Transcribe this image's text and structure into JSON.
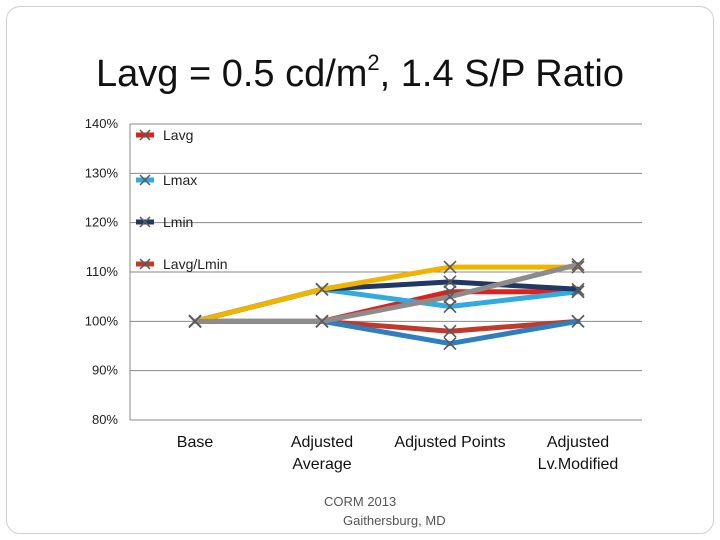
{
  "title": {
    "before": "Lavg = 0.5 cd/m",
    "sup": "2",
    "after": ", 1.4 S/P Ratio"
  },
  "footer": {
    "line1": "CORM 2013",
    "line2": "Gaithersburg, MD"
  },
  "chart_data": {
    "type": "line",
    "categories": [
      "Base",
      "Adjusted Average",
      "Adjusted Points",
      "Adjusted Lv.Modified"
    ],
    "category_lines": [
      [
        "Base"
      ],
      [
        "Adjusted",
        "Average"
      ],
      [
        "Adjusted Points"
      ],
      [
        "Adjusted",
        "Lv.Modified"
      ]
    ],
    "ylim": [
      0.8,
      1.4
    ],
    "yticks": [
      0.8,
      0.9,
      1.0,
      1.1,
      1.2,
      1.3,
      1.4
    ],
    "ytick_labels": [
      "80%",
      "90%",
      "100%",
      "110%",
      "120%",
      "130%",
      "140%"
    ],
    "grid": true,
    "legend_position": "top-left, inside plot",
    "legend": [
      {
        "name": "Lavg",
        "color": "#e0201b",
        "marker": "square"
      },
      {
        "name": "Lmax",
        "color": "#33aadf",
        "marker": "x"
      },
      {
        "name": "Lmin",
        "color": "#1f3864",
        "marker": "x"
      },
      {
        "name": "Lavg/Lmin",
        "color": "#c0392b",
        "marker": "x"
      }
    ],
    "series": [
      {
        "name": "Lavg",
        "color": "#e0201b",
        "values": [
          1.0,
          1.0,
          1.06,
          1.06
        ]
      },
      {
        "name": "Lmax",
        "color": "#33aadf",
        "values": [
          1.0,
          1.065,
          1.03,
          1.06
        ]
      },
      {
        "name": "Lmin",
        "color": "#1f3864",
        "values": [
          1.0,
          1.065,
          1.08,
          1.065
        ]
      },
      {
        "color": "#c0392b",
        "values": [
          1.0,
          1.0,
          0.98,
          1.0
        ]
      },
      {
        "color": "#2f7fbf",
        "values": [
          1.0,
          1.0,
          0.955,
          1.0
        ]
      },
      {
        "color": "#f0b400",
        "values": [
          1.0,
          1.065,
          1.11,
          1.11
        ]
      },
      {
        "color": "#8c8c8c",
        "values": [
          1.0,
          1.0,
          1.05,
          1.115
        ]
      }
    ]
  }
}
